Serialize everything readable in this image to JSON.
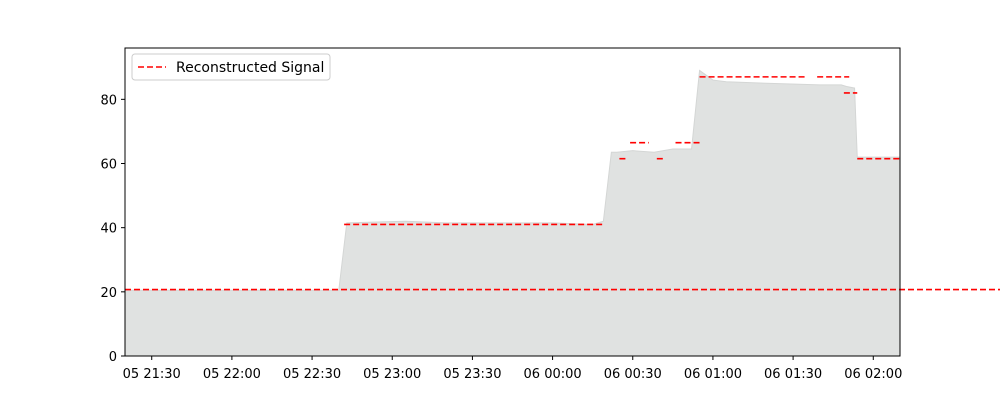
{
  "chart_data": {
    "type": "area",
    "title": "",
    "xlabel": "",
    "ylabel": "",
    "xlim": [
      "05 21:20",
      "06 02:10"
    ],
    "ylim": [
      0,
      96
    ],
    "grid": false,
    "legend_position": "top-left",
    "x_ticks": [
      "05 21:30",
      "05 22:00",
      "05 22:30",
      "05 23:00",
      "05 23:30",
      "06 00:00",
      "06 00:30",
      "06 01:00",
      "06 01:30",
      "06 02:00"
    ],
    "y_ticks": [
      0,
      20,
      40,
      60,
      80
    ],
    "area": {
      "color": "#e0e2e1",
      "x": [
        "05 21:20",
        "05 22:40",
        "05 22:43",
        "05 23:05",
        "05 23:20",
        "05 23:40",
        "06 00:00",
        "06 00:15",
        "06 00:19",
        "06 00:22",
        "06 00:24",
        "06 00:30",
        "06 00:38",
        "06 00:45",
        "06 00:52",
        "06 00:55",
        "06 01:00",
        "06 01:05",
        "06 01:20",
        "06 01:40",
        "06 01:48",
        "06 01:50",
        "06 01:53",
        "06 01:54",
        "06 02:10"
      ],
      "y": [
        20.5,
        20.5,
        41.5,
        42.0,
        41.5,
        41.5,
        41.5,
        41.0,
        42.0,
        63.5,
        63.5,
        64.0,
        63.5,
        64.5,
        64.5,
        89.0,
        86.0,
        85.5,
        85.0,
        84.5,
        84.5,
        84.0,
        83.5,
        62.0,
        62.0
      ]
    },
    "series": [
      {
        "name": "Reconstructed Signal",
        "color": "#ff0000",
        "style": "dashed",
        "segments": [
          {
            "x": [
              "05 21:20",
              "06 22:40"
            ],
            "y": 20.7
          },
          {
            "x": [
              "05 22:42",
              "06 00:19"
            ],
            "y": 41.0
          },
          {
            "x": [
              "06 00:25",
              "06 00:28"
            ],
            "y": 61.5
          },
          {
            "x": [
              "06 00:29",
              "06 00:36"
            ],
            "y": 66.5
          },
          {
            "x": [
              "06 00:39",
              "06 00:42"
            ],
            "y": 61.5
          },
          {
            "x": [
              "06 00:46",
              "06 00:55"
            ],
            "y": 66.5
          },
          {
            "x": [
              "06 00:55",
              "06 01:35"
            ],
            "y": 87.0
          },
          {
            "x": [
              "06 01:39",
              "06 01:51"
            ],
            "y": 87.0
          },
          {
            "x": [
              "06 01:49",
              "06 01:54"
            ],
            "y": 82.0
          },
          {
            "x": [
              "06 01:54",
              "06 02:10"
            ],
            "y": 61.5
          }
        ]
      }
    ]
  }
}
